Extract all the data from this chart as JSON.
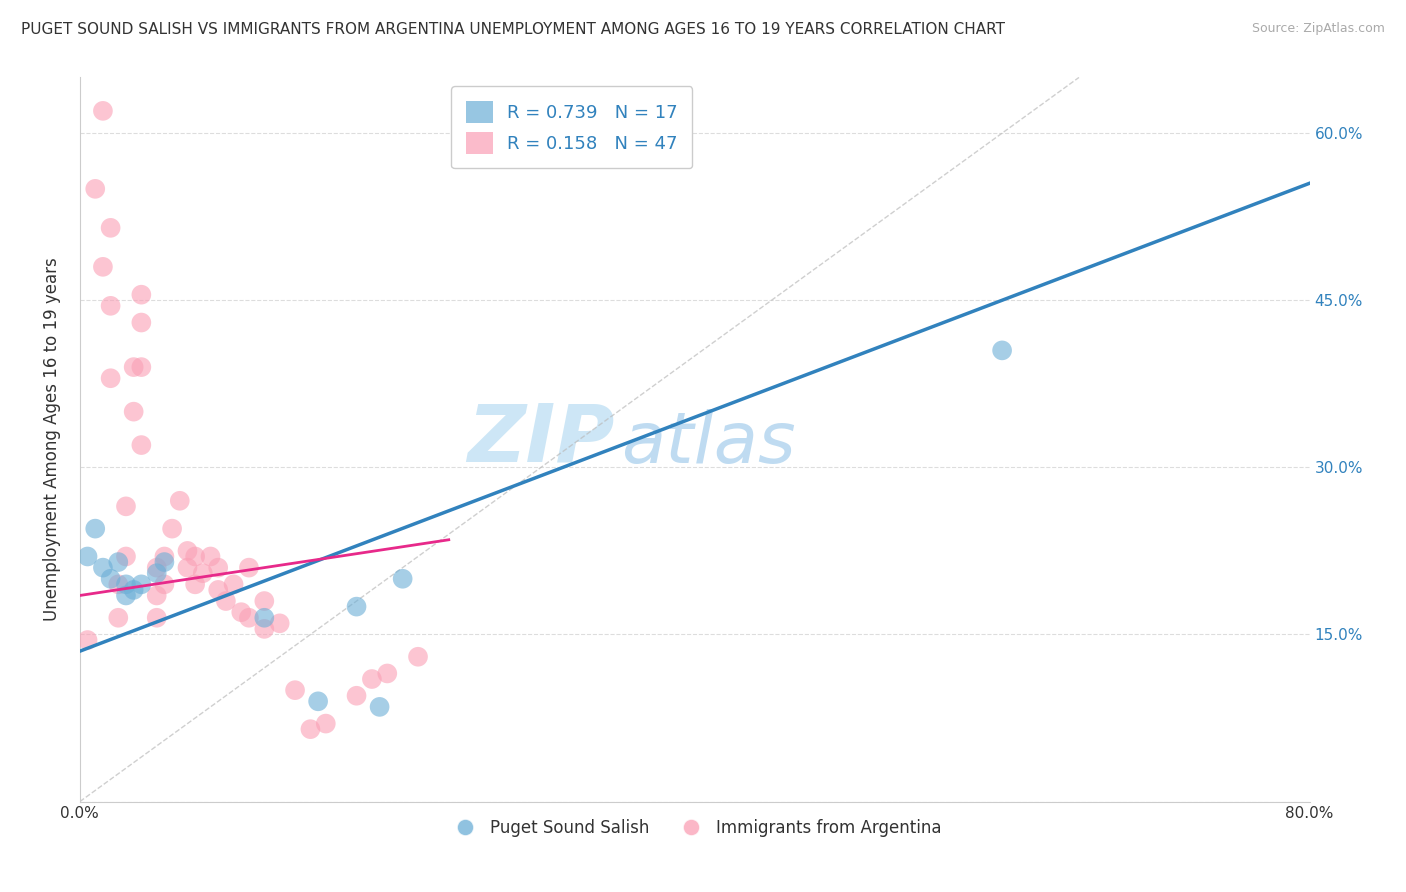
{
  "title": "PUGET SOUND SALISH VS IMMIGRANTS FROM ARGENTINA UNEMPLOYMENT AMONG AGES 16 TO 19 YEARS CORRELATION CHART",
  "source": "Source: ZipAtlas.com",
  "ylabel": "Unemployment Among Ages 16 to 19 years",
  "xlim": [
    0.0,
    0.8
  ],
  "ylim": [
    0.0,
    0.65
  ],
  "R_blue": 0.739,
  "N_blue": 17,
  "R_pink": 0.158,
  "N_pink": 47,
  "blue_color": "#6baed6",
  "pink_color": "#fa9fb5",
  "line_blue": "#3182bd",
  "line_pink": "#e7298a",
  "watermark_zip": "ZIP",
  "watermark_atlas": "atlas",
  "blue_line_x": [
    0.0,
    0.8
  ],
  "blue_line_y": [
    0.135,
    0.555
  ],
  "pink_line_x": [
    0.0,
    0.24
  ],
  "pink_line_y": [
    0.185,
    0.235
  ],
  "diag_line_x": [
    0.0,
    0.65
  ],
  "diag_line_y": [
    0.0,
    0.65
  ],
  "blue_scatter_x": [
    0.005,
    0.01,
    0.015,
    0.02,
    0.025,
    0.03,
    0.03,
    0.035,
    0.04,
    0.05,
    0.055,
    0.12,
    0.18,
    0.21,
    0.6,
    0.155,
    0.195
  ],
  "blue_scatter_y": [
    0.22,
    0.245,
    0.21,
    0.2,
    0.215,
    0.185,
    0.195,
    0.19,
    0.195,
    0.205,
    0.215,
    0.165,
    0.175,
    0.2,
    0.405,
    0.09,
    0.085
  ],
  "pink_scatter_x": [
    0.005,
    0.01,
    0.015,
    0.015,
    0.02,
    0.02,
    0.02,
    0.025,
    0.025,
    0.03,
    0.03,
    0.035,
    0.035,
    0.04,
    0.04,
    0.04,
    0.04,
    0.05,
    0.05,
    0.05,
    0.055,
    0.055,
    0.06,
    0.065,
    0.07,
    0.07,
    0.075,
    0.075,
    0.08,
    0.085,
    0.09,
    0.09,
    0.095,
    0.1,
    0.105,
    0.11,
    0.11,
    0.12,
    0.12,
    0.13,
    0.14,
    0.15,
    0.16,
    0.18,
    0.19,
    0.2,
    0.22
  ],
  "pink_scatter_y": [
    0.145,
    0.55,
    0.62,
    0.48,
    0.515,
    0.445,
    0.38,
    0.165,
    0.195,
    0.22,
    0.265,
    0.39,
    0.35,
    0.32,
    0.43,
    0.455,
    0.39,
    0.165,
    0.185,
    0.21,
    0.195,
    0.22,
    0.245,
    0.27,
    0.21,
    0.225,
    0.195,
    0.22,
    0.205,
    0.22,
    0.21,
    0.19,
    0.18,
    0.195,
    0.17,
    0.21,
    0.165,
    0.18,
    0.155,
    0.16,
    0.1,
    0.065,
    0.07,
    0.095,
    0.11,
    0.115,
    0.13
  ]
}
